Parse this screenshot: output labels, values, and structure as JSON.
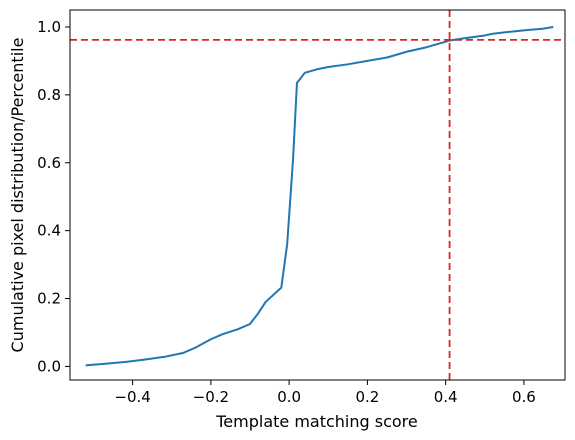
{
  "chart_data": {
    "type": "line",
    "title": "",
    "xlabel": "Template matching score",
    "ylabel": "Cumulative pixel distribution/Percentile",
    "xlim": [
      -0.56,
      0.705
    ],
    "ylim": [
      -0.04,
      1.05
    ],
    "xticks": [
      -0.4,
      -0.2,
      0.0,
      0.2,
      0.4,
      0.6
    ],
    "xtick_labels": [
      "−0.4",
      "−0.2",
      "0.0",
      "0.2",
      "0.4",
      "0.6"
    ],
    "yticks": [
      0.0,
      0.2,
      0.4,
      0.6,
      0.8,
      1.0
    ],
    "ytick_labels": [
      "0.0",
      "0.2",
      "0.4",
      "0.6",
      "0.8",
      "1.0"
    ],
    "grid": false,
    "series": [
      {
        "color": "#1f77b4",
        "x": [
          -0.52,
          -0.47,
          -0.42,
          -0.37,
          -0.32,
          -0.27,
          -0.24,
          -0.2,
          -0.17,
          -0.13,
          -0.1,
          -0.08,
          -0.06,
          -0.02,
          -0.005,
          0.01,
          0.02,
          0.04,
          0.07,
          0.1,
          0.15,
          0.2,
          0.25,
          0.28,
          0.3,
          0.35,
          0.38,
          0.41,
          0.45,
          0.5,
          0.52,
          0.55,
          0.6,
          0.65,
          0.675
        ],
        "y": [
          0.003,
          0.008,
          0.013,
          0.02,
          0.028,
          0.04,
          0.055,
          0.08,
          0.095,
          0.11,
          0.125,
          0.155,
          0.19,
          0.232,
          0.36,
          0.61,
          0.835,
          0.865,
          0.875,
          0.882,
          0.89,
          0.9,
          0.91,
          0.92,
          0.927,
          0.94,
          0.95,
          0.96,
          0.967,
          0.975,
          0.98,
          0.984,
          0.99,
          0.995,
          1.0
        ]
      }
    ],
    "reference_lines": [
      {
        "orientation": "horizontal",
        "value": 0.962,
        "color": "#d62728",
        "style": "dashed"
      },
      {
        "orientation": "vertical",
        "value": 0.41,
        "color": "#d62728",
        "style": "dashed"
      }
    ]
  }
}
